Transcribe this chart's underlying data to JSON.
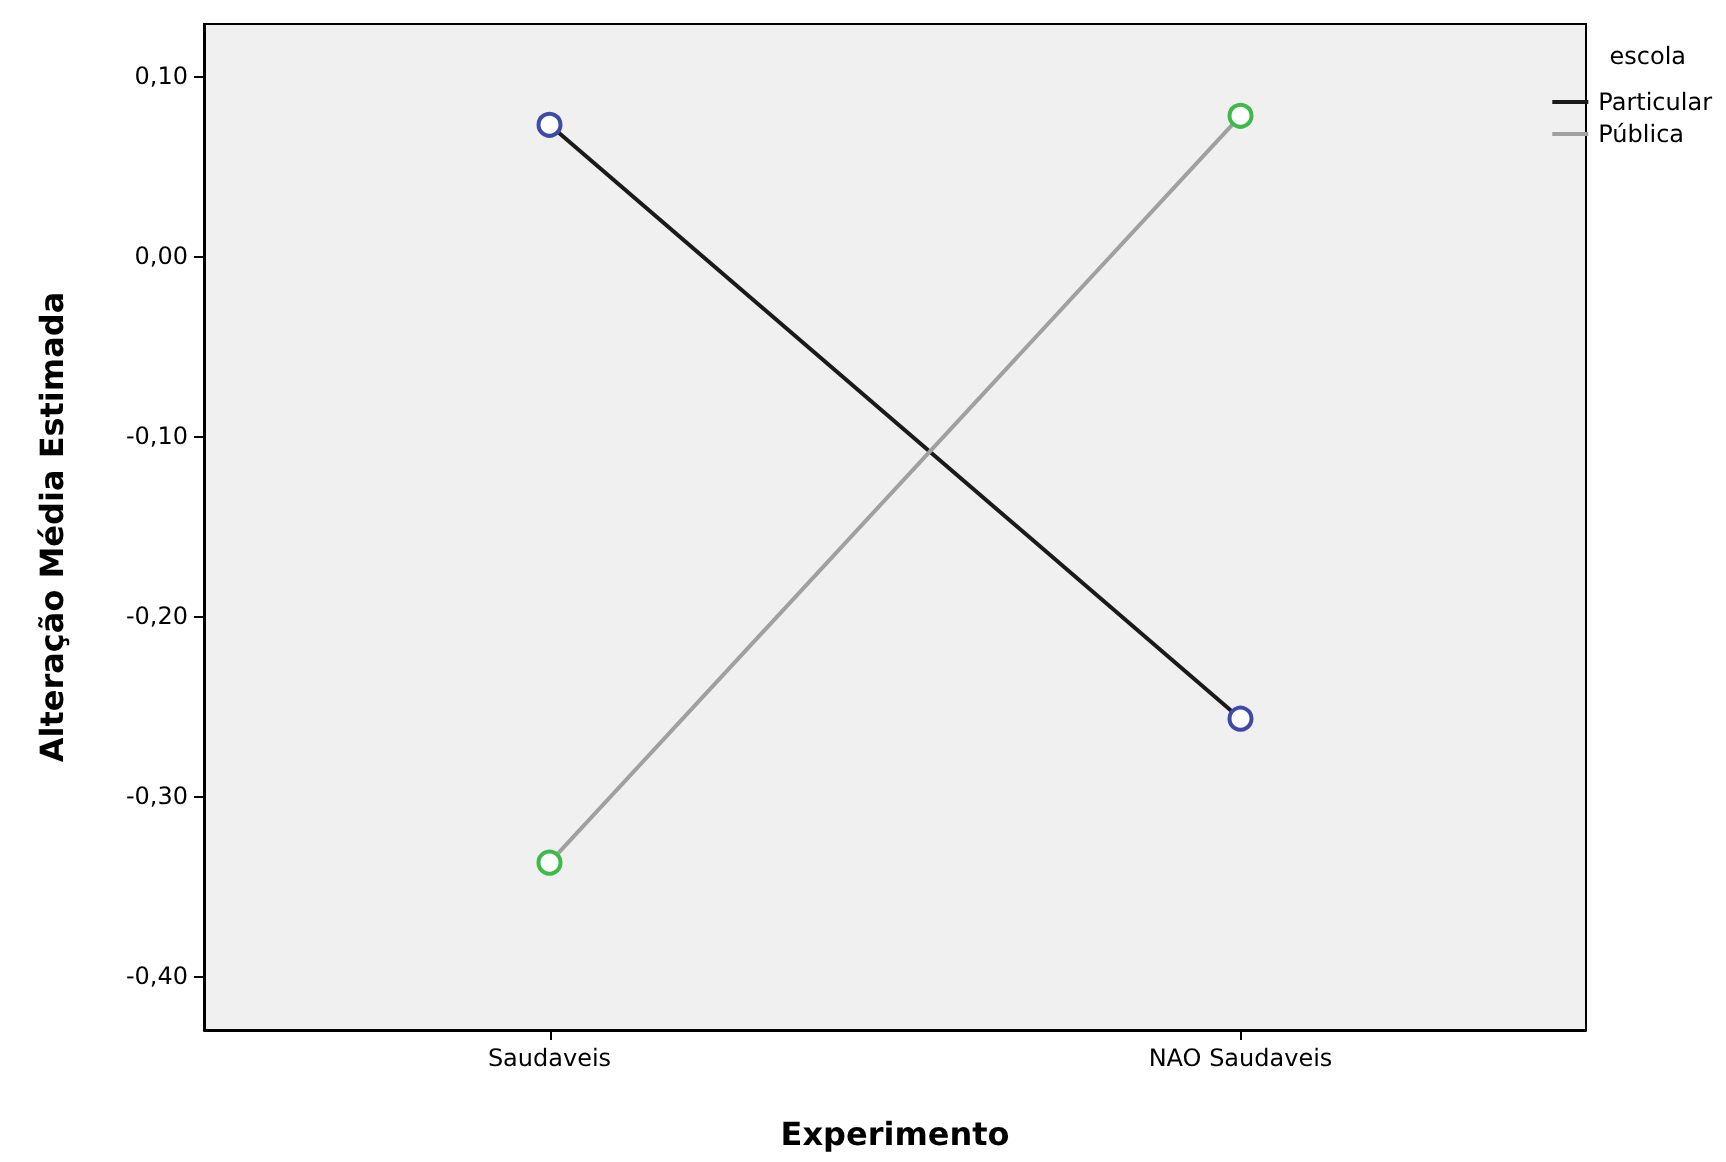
{
  "chart_data": {
    "type": "line",
    "xlabel": "Experimento",
    "ylabel": "Alteração Média Estimada",
    "legend_title": "escola",
    "categories": [
      "Saudaveis",
      "NAO Saudaveis"
    ],
    "series": [
      {
        "name": "Particular",
        "color": "#1a1a1a",
        "colors": [
          "#3d4aa8",
          "#3d4aa8"
        ],
        "values": [
          0.073,
          -0.257
        ]
      },
      {
        "name": "Pública",
        "color": "#a0a0a0",
        "colors": [
          "#3dbb4a",
          "#3dbb4a"
        ],
        "values": [
          -0.337,
          0.078
        ]
      }
    ],
    "ylim": [
      -0.43,
      0.129
    ],
    "yticks": [
      {
        "value": -0.4,
        "label": "-0,40"
      },
      {
        "value": -0.3,
        "label": "-0,30"
      },
      {
        "value": -0.2,
        "label": "-0,20"
      },
      {
        "value": -0.1,
        "label": "-0,10"
      },
      {
        "value": 0,
        "label": "0,00"
      },
      {
        "value": 0.1,
        "label": "0,10"
      }
    ],
    "grid": false,
    "legend": "top right",
    "marker": "circle",
    "line_style": "solid"
  }
}
